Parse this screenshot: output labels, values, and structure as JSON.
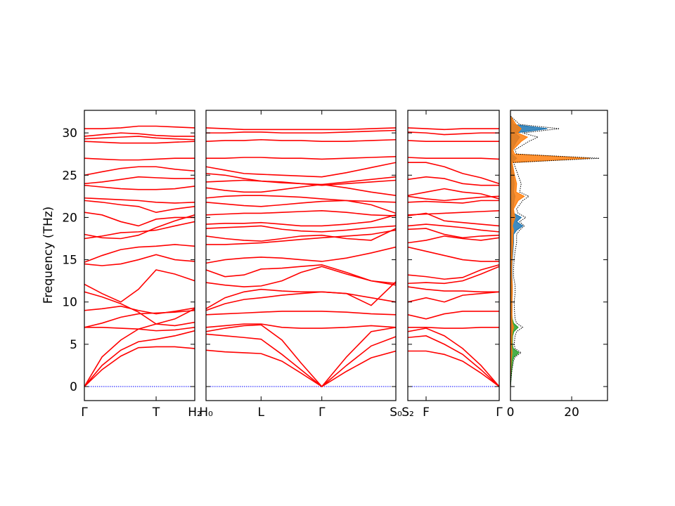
{
  "chart_data": [
    {
      "type": "line",
      "ylabel": "Frequency (THz)",
      "ylim": [
        -1.66,
        32.67
      ],
      "yticks": [
        0,
        5,
        10,
        15,
        20,
        25,
        30
      ],
      "xlim": [
        0,
        1
      ],
      "xticks": [
        {
          "value": 0,
          "label": "Γ"
        },
        {
          "value": 0.65,
          "label": "T"
        },
        {
          "value": 1,
          "label": "H₂"
        }
      ],
      "color": "#ff0000",
      "hline": 0,
      "hline_color": "#0000ff",
      "x": [
        0,
        0.16,
        0.33,
        0.49,
        0.65,
        0.82,
        1.0
      ],
      "series": [
        {
          "values": [
            0,
            2.0,
            3.6,
            4.6,
            4.7,
            4.7,
            4.5
          ]
        },
        {
          "values": [
            0,
            2.5,
            4.3,
            5.3,
            5.6,
            6.0,
            6.6
          ]
        },
        {
          "values": [
            0,
            3.5,
            5.5,
            6.8,
            7.4,
            8.0,
            9.2
          ]
        },
        {
          "values": [
            7.0,
            7.0,
            6.9,
            6.8,
            6.6,
            6.7,
            7.0
          ]
        },
        {
          "values": [
            7.0,
            7.5,
            8.2,
            8.6,
            8.7,
            8.8,
            9.0
          ]
        },
        {
          "values": [
            9.0,
            9.2,
            9.5,
            9.0,
            8.6,
            8.9,
            9.3
          ]
        },
        {
          "values": [
            11.2,
            10.6,
            9.8,
            8.8,
            7.4,
            7.2,
            7.6
          ]
        },
        {
          "values": [
            12.1,
            11.0,
            10.0,
            11.5,
            13.8,
            13.3,
            12.5
          ]
        },
        {
          "values": [
            14.5,
            14.3,
            14.5,
            15.0,
            15.6,
            15.0,
            14.8
          ]
        },
        {
          "values": [
            14.7,
            15.5,
            16.2,
            16.5,
            16.6,
            16.8,
            16.6
          ]
        },
        {
          "values": [
            17.5,
            17.8,
            18.2,
            18.3,
            18.5,
            19.0,
            19.5
          ]
        },
        {
          "values": [
            18.0,
            17.6,
            17.5,
            17.9,
            18.8,
            19.6,
            20.3
          ]
        },
        {
          "values": [
            20.6,
            20.3,
            19.5,
            19.0,
            19.8,
            20.0,
            20.0
          ]
        },
        {
          "values": [
            22.0,
            21.8,
            21.5,
            21.3,
            20.6,
            21.0,
            21.3
          ]
        },
        {
          "values": [
            22.3,
            22.2,
            22.1,
            22.0,
            21.8,
            21.7,
            21.8
          ]
        },
        {
          "values": [
            23.8,
            23.6,
            23.4,
            23.3,
            23.3,
            23.4,
            23.7
          ]
        },
        {
          "values": [
            24.0,
            24.2,
            24.5,
            24.8,
            24.7,
            24.6,
            24.6
          ]
        },
        {
          "values": [
            25.0,
            25.4,
            25.8,
            26.0,
            26.0,
            25.7,
            25.5
          ]
        },
        {
          "values": [
            27.0,
            26.9,
            26.8,
            26.8,
            26.9,
            27.0,
            27.0
          ]
        },
        {
          "values": [
            29.0,
            28.9,
            28.8,
            28.8,
            28.8,
            28.9,
            29.0
          ]
        },
        {
          "values": [
            29.3,
            29.4,
            29.5,
            29.6,
            29.4,
            29.3,
            29.2
          ]
        },
        {
          "values": [
            29.6,
            29.8,
            30.0,
            29.9,
            29.7,
            29.6,
            29.6
          ]
        },
        {
          "values": [
            30.5,
            30.5,
            30.6,
            30.8,
            30.8,
            30.7,
            30.6
          ]
        }
      ]
    },
    {
      "type": "line",
      "xlim": [
        0,
        1
      ],
      "xticks": [
        {
          "value": 0,
          "label": "H₀"
        },
        {
          "value": 0.29,
          "label": "L"
        },
        {
          "value": 0.61,
          "label": "Γ"
        },
        {
          "value": 1,
          "label": "S₀"
        }
      ],
      "color": "#ff0000",
      "hline": 0,
      "hline_color": "#0000ff",
      "x": [
        0,
        0.1,
        0.2,
        0.29,
        0.4,
        0.5,
        0.61,
        0.74,
        0.87,
        1.0
      ],
      "series": [
        {
          "values": [
            4.3,
            4.1,
            4.0,
            3.9,
            3.0,
            1.6,
            0,
            1.8,
            3.4,
            4.2
          ]
        },
        {
          "values": [
            6.2,
            6.0,
            5.8,
            5.6,
            3.8,
            2.0,
            0,
            2.5,
            4.8,
            5.9
          ]
        },
        {
          "values": [
            6.5,
            6.9,
            7.2,
            7.3,
            5.5,
            2.8,
            0,
            3.5,
            6.5,
            7.0
          ]
        },
        {
          "values": [
            7.0,
            7.2,
            7.4,
            7.4,
            7.0,
            6.9,
            6.9,
            7.0,
            7.2,
            7.0
          ]
        },
        {
          "values": [
            8.5,
            8.6,
            8.7,
            8.8,
            8.9,
            8.9,
            8.9,
            8.8,
            8.6,
            8.5
          ]
        },
        {
          "values": [
            9.0,
            9.8,
            10.3,
            10.5,
            10.8,
            11.0,
            11.2,
            11.0,
            10.5,
            10.0
          ]
        },
        {
          "values": [
            9.2,
            10.5,
            11.2,
            11.5,
            11.3,
            11.2,
            11.2,
            11.0,
            9.6,
            12.4
          ]
        },
        {
          "values": [
            12.3,
            12.0,
            11.8,
            11.9,
            12.5,
            13.5,
            14.2,
            13.3,
            12.5,
            12.0
          ]
        },
        {
          "values": [
            13.8,
            13.0,
            13.2,
            13.9,
            14.0,
            14.2,
            14.4,
            13.5,
            12.5,
            12.2
          ]
        },
        {
          "values": [
            14.6,
            15.0,
            15.2,
            15.3,
            15.2,
            15.0,
            14.8,
            15.2,
            15.8,
            16.5
          ]
        },
        {
          "values": [
            16.8,
            16.8,
            16.9,
            17.0,
            17.2,
            17.4,
            17.6,
            17.8,
            18.0,
            18.5
          ]
        },
        {
          "values": [
            17.8,
            17.5,
            17.3,
            17.2,
            17.5,
            17.8,
            17.9,
            17.5,
            17.3,
            18.7
          ]
        },
        {
          "values": [
            18.7,
            18.8,
            18.9,
            19.0,
            18.6,
            18.4,
            18.3,
            18.5,
            18.8,
            19.0
          ]
        },
        {
          "values": [
            19.2,
            19.3,
            19.3,
            19.4,
            19.2,
            19.0,
            19.0,
            19.2,
            19.5,
            20.3
          ]
        },
        {
          "values": [
            20.3,
            20.4,
            20.5,
            20.5,
            20.6,
            20.7,
            20.8,
            20.6,
            20.3,
            20.2
          ]
        },
        {
          "values": [
            21.8,
            21.6,
            21.4,
            21.3,
            21.5,
            21.7,
            21.9,
            22.0,
            21.9,
            21.8
          ]
        },
        {
          "values": [
            22.3,
            22.5,
            22.6,
            22.6,
            22.5,
            22.4,
            22.2,
            22.0,
            21.5,
            20.5
          ]
        },
        {
          "values": [
            23.5,
            23.2,
            23.0,
            23.0,
            23.3,
            23.6,
            23.9,
            23.5,
            23.0,
            22.6
          ]
        },
        {
          "values": [
            24.2,
            24.3,
            24.4,
            24.3,
            24.1,
            24.0,
            23.8,
            24.0,
            24.2,
            24.4
          ]
        },
        {
          "values": [
            25.2,
            25.0,
            24.6,
            24.3,
            24.2,
            24.0,
            23.9,
            24.2,
            24.5,
            24.8
          ]
        },
        {
          "values": [
            26.0,
            25.6,
            25.2,
            25.1,
            25.0,
            24.9,
            24.8,
            25.3,
            25.9,
            26.5
          ]
        },
        {
          "values": [
            27.0,
            27.0,
            27.1,
            27.1,
            27.0,
            27.0,
            26.9,
            27.0,
            27.1,
            27.2
          ]
        },
        {
          "values": [
            29.0,
            29.1,
            29.1,
            29.2,
            29.1,
            29.1,
            29.0,
            29.0,
            29.1,
            29.2
          ]
        },
        {
          "values": [
            30.0,
            30.0,
            30.1,
            30.1,
            30.0,
            30.0,
            30.0,
            30.1,
            30.2,
            30.3
          ]
        },
        {
          "values": [
            30.6,
            30.5,
            30.4,
            30.4,
            30.4,
            30.4,
            30.4,
            30.4,
            30.5,
            30.6
          ]
        }
      ]
    },
    {
      "type": "line",
      "xlim": [
        0,
        1
      ],
      "xticks": [
        {
          "value": 0,
          "label": "S₂"
        },
        {
          "value": 0.2,
          "label": "F"
        },
        {
          "value": 1,
          "label": "Γ"
        }
      ],
      "color": "#ff0000",
      "hline": 0,
      "hline_color": "#0000ff",
      "x": [
        0,
        0.2,
        0.4,
        0.6,
        0.8,
        1.0
      ],
      "series": [
        {
          "values": [
            4.2,
            4.2,
            3.8,
            3.0,
            1.6,
            0
          ]
        },
        {
          "values": [
            5.8,
            6.0,
            5.0,
            3.8,
            2.0,
            0
          ]
        },
        {
          "values": [
            6.5,
            6.9,
            6.0,
            4.5,
            2.5,
            0
          ]
        },
        {
          "values": [
            7.0,
            7.0,
            6.9,
            6.9,
            7.0,
            7.0
          ]
        },
        {
          "values": [
            8.5,
            8.0,
            8.6,
            8.9,
            8.9,
            8.9
          ]
        },
        {
          "values": [
            10.0,
            10.5,
            10.0,
            10.8,
            11.0,
            11.2
          ]
        },
        {
          "values": [
            11.8,
            11.5,
            11.3,
            11.3,
            11.2,
            11.2
          ]
        },
        {
          "values": [
            12.2,
            12.3,
            12.2,
            12.5,
            13.3,
            14.2
          ]
        },
        {
          "values": [
            13.2,
            13.0,
            12.7,
            12.9,
            13.8,
            14.4
          ]
        },
        {
          "values": [
            16.5,
            16.0,
            15.5,
            15.0,
            14.8,
            14.8
          ]
        },
        {
          "values": [
            17.0,
            17.3,
            17.8,
            17.5,
            17.3,
            17.6
          ]
        },
        {
          "values": [
            18.6,
            18.7,
            18.0,
            17.6,
            17.8,
            17.9
          ]
        },
        {
          "values": [
            19.0,
            19.2,
            19.0,
            18.8,
            18.5,
            18.3
          ]
        },
        {
          "values": [
            20.2,
            20.5,
            19.6,
            19.4,
            19.2,
            19.0
          ]
        },
        {
          "values": [
            20.3,
            20.4,
            20.5,
            20.6,
            20.7,
            20.8
          ]
        },
        {
          "values": [
            21.8,
            21.9,
            21.8,
            21.7,
            22.0,
            22.0
          ]
        },
        {
          "values": [
            22.5,
            22.2,
            22.0,
            22.2,
            22.4,
            22.5
          ]
        },
        {
          "values": [
            22.6,
            23.0,
            23.4,
            23.0,
            22.8,
            22.2
          ]
        },
        {
          "values": [
            24.5,
            24.8,
            24.6,
            24.0,
            23.8,
            23.8
          ]
        },
        {
          "values": [
            26.5,
            26.5,
            26.0,
            25.2,
            24.7,
            24.0
          ]
        },
        {
          "values": [
            27.1,
            27.0,
            27.0,
            27.0,
            27.0,
            26.9
          ]
        },
        {
          "values": [
            29.1,
            29.0,
            29.0,
            29.0,
            29.0,
            29.0
          ]
        },
        {
          "values": [
            30.1,
            30.0,
            29.8,
            29.9,
            30.0,
            30.0
          ]
        },
        {
          "values": [
            30.6,
            30.5,
            30.4,
            30.5,
            30.5,
            30.5
          ]
        }
      ]
    },
    {
      "type": "dos",
      "xlim": [
        0,
        31.7
      ],
      "xticks": [
        0,
        20
      ],
      "y": [
        0,
        1,
        2,
        3,
        3.5,
        4,
        4.5,
        5,
        6,
        6.5,
        7,
        7.5,
        8,
        9,
        10,
        11,
        12,
        13,
        14,
        15,
        16,
        17,
        18,
        18.5,
        19,
        19.5,
        20,
        20.5,
        21,
        22,
        22.5,
        23,
        24,
        25,
        26,
        26.5,
        27,
        27.5,
        28,
        29,
        29.5,
        30,
        30.5,
        31,
        32
      ],
      "series": [
        {
          "color": "#2ca02c",
          "values": [
            0,
            0.2,
            0.4,
            0.7,
            1.1,
            2.8,
            0.9,
            0.6,
            0.7,
            1.1,
            2.5,
            1,
            0.6,
            0.3,
            0.2,
            0.3,
            0.3,
            0.1,
            0.1,
            0.1,
            0.1,
            0.2,
            0.2,
            0,
            0,
            0,
            0,
            0,
            0,
            0.3,
            0,
            0,
            0.3,
            0.2,
            0.1,
            0.1,
            1,
            0.2,
            0.2,
            0.5,
            0.5,
            0.2,
            0.5,
            0.2,
            0
          ]
        },
        {
          "color": "#1f77b4",
          "values": [
            0,
            0,
            0,
            0.1,
            0.1,
            0.2,
            0.2,
            0.2,
            0.3,
            0.3,
            0.5,
            0.4,
            0.4,
            0.5,
            0.5,
            0.6,
            0.6,
            0.5,
            0.5,
            0.6,
            0.8,
            1,
            1,
            2,
            4,
            2,
            3.5,
            1,
            0.8,
            1.2,
            1.5,
            1,
            1.2,
            1,
            0.6,
            0.4,
            2,
            0.5,
            0.5,
            2,
            3,
            1.5,
            12,
            1,
            0
          ]
        },
        {
          "color": "#ff7f0e",
          "values": [
            0,
            0,
            0.1,
            0.2,
            0.3,
            0.5,
            0.4,
            0.4,
            0.5,
            0.6,
            1,
            0.6,
            0.5,
            0.5,
            0.5,
            0.6,
            0.6,
            0.4,
            0.4,
            0.5,
            0.6,
            0.8,
            0.8,
            1,
            0.6,
            1,
            1.5,
            1.2,
            1,
            2.5,
            4.5,
            1.8,
            2,
            1.3,
            0.8,
            0.5,
            26,
            1.3,
            0.8,
            3.5,
            5.5,
            2.3,
            3.5,
            1.8,
            0
          ]
        },
        {
          "color": "#000000",
          "linestyle": "dotted",
          "values": [
            0,
            0.2,
            0.5,
            1,
            1.5,
            3.5,
            1.5,
            1.2,
            1.5,
            2,
            4,
            2,
            1.5,
            1.3,
            1.2,
            1.5,
            1.5,
            1,
            1,
            1.2,
            1.5,
            2,
            2,
            3,
            4.5,
            3,
            5,
            2.5,
            2,
            4,
            6,
            3,
            3.5,
            2.5,
            1.5,
            1,
            29,
            2,
            1.5,
            6,
            9,
            4,
            16,
            3,
            0
          ]
        }
      ]
    }
  ]
}
